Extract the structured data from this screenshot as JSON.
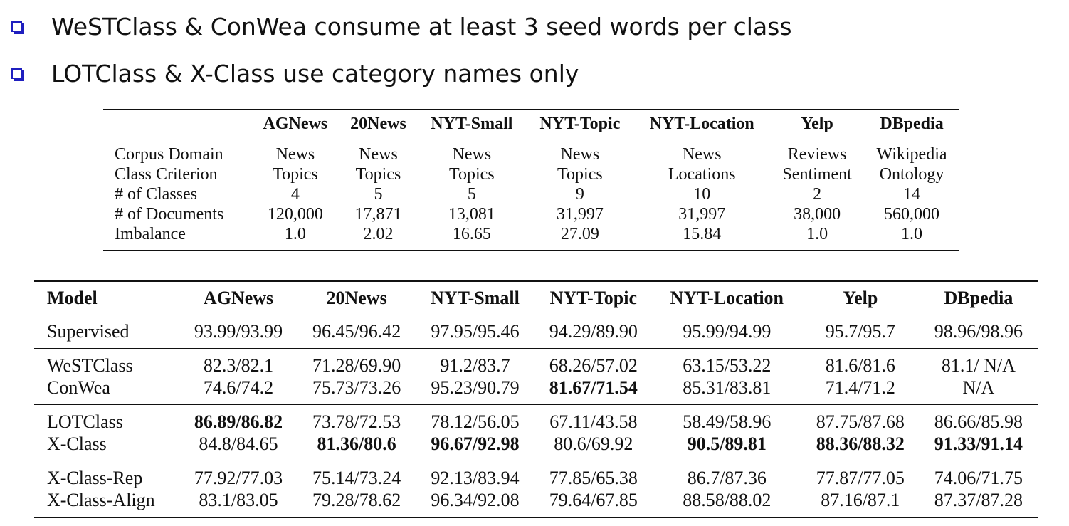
{
  "bullets": [
    "WeSTClass & ConWea consume at least 3 seed words per class",
    "LOTClass & X-Class use category names only"
  ],
  "stats_table": {
    "columns": [
      "",
      "AGNews",
      "20News",
      "NYT-Small",
      "NYT-Topic",
      "NYT-Location",
      "Yelp",
      "DBpedia"
    ],
    "rows": [
      [
        "Corpus Domain",
        "News",
        "News",
        "News",
        "News",
        "News",
        "Reviews",
        "Wikipedia"
      ],
      [
        "Class Criterion",
        "Topics",
        "Topics",
        "Topics",
        "Topics",
        "Locations",
        "Sentiment",
        "Ontology"
      ],
      [
        "# of Classes",
        "4",
        "5",
        "5",
        "9",
        "10",
        "2",
        "14"
      ],
      [
        "# of Documents",
        "120,000",
        "17,871",
        "13,081",
        "31,997",
        "31,997",
        "38,000",
        "560,000"
      ],
      [
        "Imbalance",
        "1.0",
        "2.02",
        "16.65",
        "27.09",
        "15.84",
        "1.0",
        "1.0"
      ]
    ]
  },
  "results_table": {
    "columns": [
      "Model",
      "AGNews",
      "20News",
      "NYT-Small",
      "NYT-Topic",
      "NYT-Location",
      "Yelp",
      "DBpedia"
    ],
    "rows": [
      [
        "Supervised",
        "93.99/93.99",
        "96.45/96.42",
        "97.95/95.46",
        "94.29/89.90",
        "95.99/94.99",
        "95.7/95.7",
        "98.96/98.96"
      ],
      [
        "WeSTClass",
        "82.3/82.1",
        "71.28/69.90",
        "91.2/83.7",
        "68.26/57.02",
        "63.15/53.22",
        "81.6/81.6",
        "81.1/ N/A"
      ],
      [
        "ConWea",
        "74.6/74.2",
        "75.73/73.26",
        "95.23/90.79",
        "81.67/71.54",
        "85.31/83.81",
        "71.4/71.2",
        "N/A"
      ],
      [
        "LOTClass",
        "86.89/86.82",
        "73.78/72.53",
        "78.12/56.05",
        "67.11/43.58",
        "58.49/58.96",
        "87.75/87.68",
        "86.66/85.98"
      ],
      [
        "X-Class",
        "84.8/84.65",
        "81.36/80.6",
        "96.67/92.98",
        "80.6/69.92",
        "90.5/89.81",
        "88.36/88.32",
        "91.33/91.14"
      ],
      [
        "X-Class-Rep",
        "77.92/77.03",
        "75.14/73.24",
        "92.13/83.94",
        "77.85/65.38",
        "86.7/87.36",
        "77.87/77.05",
        "74.06/71.75"
      ],
      [
        "X-Class-Align",
        "83.1/83.05",
        "79.28/78.62",
        "96.34/92.08",
        "79.64/67.85",
        "88.58/88.02",
        "87.16/87.1",
        "87.37/87.28"
      ]
    ]
  }
}
